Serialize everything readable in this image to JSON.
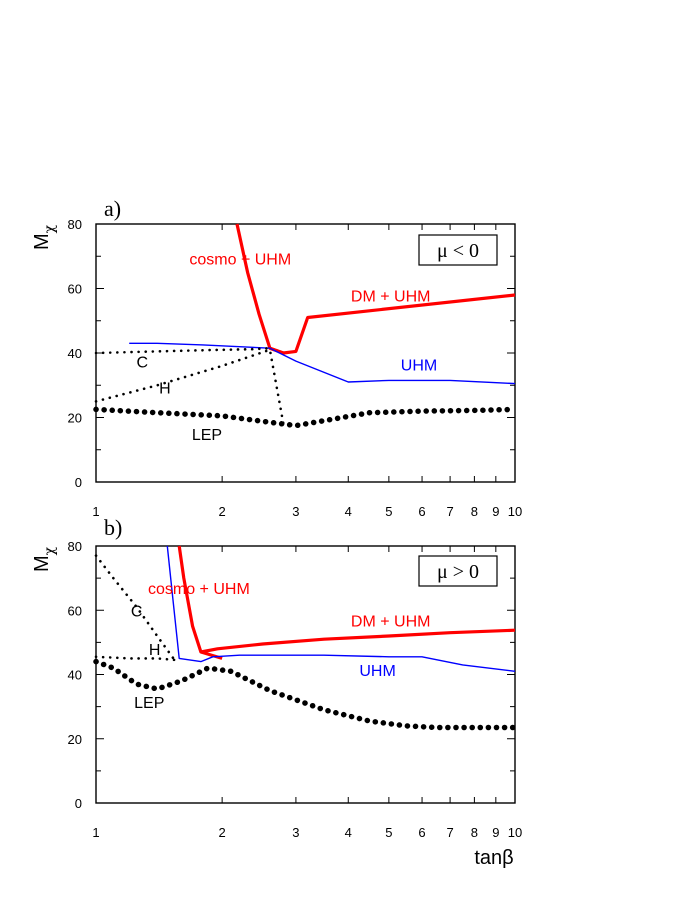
{
  "chart_data": [
    {
      "type": "line",
      "panel_label": "a)",
      "ylabel": {
        "main": "M",
        "sub": "χ"
      },
      "xlabel": "",
      "x_scale": "log",
      "xlim": [
        1,
        10
      ],
      "ylim": [
        0,
        80
      ],
      "x_ticks": [
        1,
        2,
        3,
        4,
        5,
        6,
        7,
        8,
        9,
        10
      ],
      "x_tick_labels": [
        "1",
        "2",
        "3",
        "4",
        "5",
        "6",
        "7",
        "8",
        "9",
        "10"
      ],
      "y_ticks": [
        0,
        20,
        40,
        60,
        80
      ],
      "y_tick_labels": [
        "0",
        "20",
        "40",
        "60",
        "80"
      ],
      "box_label": "μ < 0",
      "series": [
        {
          "name": "cosmo + UHM",
          "color": "#ff0000",
          "style": "solid",
          "width": 3.2,
          "x": [
            2.17,
            2.3,
            2.45,
            2.6,
            2.8
          ],
          "y": [
            80,
            65,
            52,
            41.5,
            40
          ]
        },
        {
          "name": "DM + UHM",
          "color": "#ff0000",
          "style": "solid",
          "width": 3.2,
          "x": [
            2.6,
            2.8,
            3.0,
            3.2,
            10
          ],
          "y": [
            41.5,
            40,
            40.5,
            51,
            58
          ]
        },
        {
          "name": "UHM",
          "color": "#0000ff",
          "style": "solid",
          "width": 1.4,
          "x": [
            1.2,
            1.4,
            1.8,
            2.6,
            3.0,
            4.0,
            5.0,
            7.0,
            10
          ],
          "y": [
            43,
            43,
            42.5,
            41.5,
            37.5,
            31,
            31.5,
            31.5,
            30.5
          ]
        },
        {
          "name": "C",
          "color": "#000000",
          "style": "dotted",
          "width": 2.6,
          "x": [
            1.0,
            1.4,
            2.0,
            2.4,
            2.6
          ],
          "y": [
            40,
            40.5,
            41,
            41.2,
            41.5
          ]
        },
        {
          "name": "H",
          "color": "#000000",
          "style": "dotted",
          "width": 2.6,
          "x": [
            1.0,
            1.4,
            2.0,
            2.6,
            2.8
          ],
          "y": [
            25,
            30,
            36,
            41,
            18
          ]
        },
        {
          "name": "LEP",
          "color": "#000000",
          "style": "bigdot",
          "width": 5.5,
          "x": [
            1.0,
            1.4,
            2.0,
            2.6,
            3.0,
            3.5,
            4.5,
            6.0,
            8.0,
            10
          ],
          "y": [
            22.5,
            21.5,
            20.5,
            18.5,
            17.5,
            19,
            21.5,
            22,
            22.2,
            22.5
          ]
        }
      ],
      "annotations": [
        {
          "text": "cosmo + UHM",
          "color": "#ff0000",
          "x": 2.21,
          "y": 67.5
        },
        {
          "text": "DM + UHM",
          "color": "#ff0000",
          "x": 5.05,
          "y": 56
        },
        {
          "text": "UHM",
          "color": "#0000ff",
          "x": 5.9,
          "y": 34.5
        },
        {
          "text": "C",
          "color": "#000000",
          "x": 1.29,
          "y": 35.5
        },
        {
          "text": "H",
          "color": "#000000",
          "x": 1.46,
          "y": 27.5
        },
        {
          "text": "LEP",
          "color": "#000000",
          "x": 1.84,
          "y": 13
        }
      ]
    },
    {
      "type": "line",
      "panel_label": "b)",
      "ylabel": {
        "main": "M",
        "sub": "χ"
      },
      "xlabel": "tanβ",
      "x_scale": "log",
      "xlim": [
        1,
        10
      ],
      "ylim": [
        0,
        80
      ],
      "x_ticks": [
        1,
        2,
        3,
        4,
        5,
        6,
        7,
        8,
        9,
        10
      ],
      "x_tick_labels": [
        "1",
        "2",
        "3",
        "4",
        "5",
        "6",
        "7",
        "8",
        "9",
        "10"
      ],
      "y_ticks": [
        0,
        20,
        40,
        60,
        80
      ],
      "y_tick_labels": [
        "0",
        "20",
        "40",
        "60",
        "80"
      ],
      "box_label": "μ > 0",
      "series": [
        {
          "name": "cosmo + UHM",
          "color": "#ff0000",
          "style": "solid",
          "width": 3.2,
          "x": [
            1.58,
            1.62,
            1.7,
            1.78,
            2.0
          ],
          "y": [
            80,
            70,
            55,
            47,
            45
          ]
        },
        {
          "name": "DM + UHM",
          "color": "#ff0000",
          "style": "solid",
          "width": 3.2,
          "x": [
            1.78,
            1.95,
            2.5,
            3.5,
            5.0,
            7.0,
            10
          ],
          "y": [
            47,
            48,
            49.5,
            51,
            52,
            53,
            53.8
          ]
        },
        {
          "name": "UHM",
          "color": "#0000ff",
          "style": "solid",
          "width": 1.4,
          "x": [
            1.48,
            1.53,
            1.58,
            1.78,
            1.9,
            2.2,
            3.5,
            5.0,
            6.0,
            7.5,
            10
          ],
          "y": [
            80,
            62,
            45,
            44,
            45.5,
            46,
            46,
            45.5,
            45.5,
            43,
            41
          ]
        },
        {
          "name": "C",
          "color": "#000000",
          "style": "dotted",
          "width": 2.6,
          "x": [
            1.0,
            1.1,
            1.25,
            1.4,
            1.55
          ],
          "y": [
            77,
            70,
            61,
            52,
            44
          ]
        },
        {
          "name": "H",
          "color": "#000000",
          "style": "dotted",
          "width": 2.6,
          "x": [
            1.0,
            1.2,
            1.4,
            1.55
          ],
          "y": [
            45.5,
            45,
            45,
            44.5
          ]
        },
        {
          "name": "LEP",
          "color": "#000000",
          "style": "bigdot",
          "width": 5.5,
          "x": [
            1.0,
            1.1,
            1.25,
            1.4,
            1.6,
            1.85,
            2.1,
            2.6,
            3.5,
            4.5,
            5.5,
            6.5,
            8.0,
            10
          ],
          "y": [
            44,
            42,
            37,
            35.5,
            38,
            42,
            41,
            35,
            29,
            25.5,
            24,
            23.5,
            23.5,
            23.5
          ]
        }
      ],
      "annotations": [
        {
          "text": "cosmo + UHM",
          "color": "#ff0000",
          "x": 1.76,
          "y": 65
        },
        {
          "text": "DM + UHM",
          "color": "#ff0000",
          "x": 5.05,
          "y": 55
        },
        {
          "text": "UHM",
          "color": "#0000ff",
          "x": 4.7,
          "y": 39.5
        },
        {
          "text": "C",
          "color": "#000000",
          "x": 1.25,
          "y": 58
        },
        {
          "text": "H",
          "color": "#000000",
          "x": 1.38,
          "y": 46
        },
        {
          "text": "LEP",
          "color": "#000000",
          "x": 1.34,
          "y": 29.5
        }
      ]
    }
  ]
}
